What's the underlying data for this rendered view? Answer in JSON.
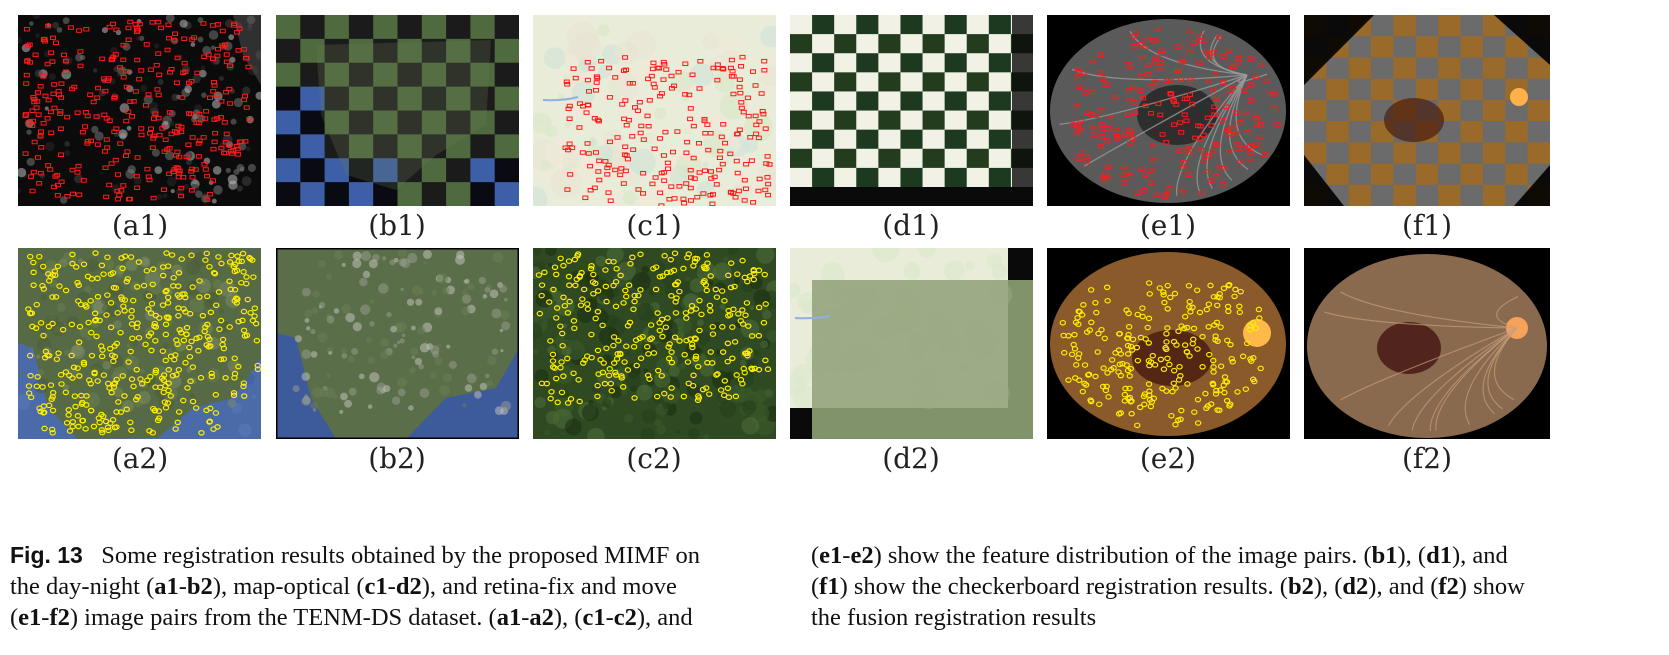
{
  "labels": {
    "a1": "(a1)",
    "b1": "(b1)",
    "c1": "(c1)",
    "d1": "(d1)",
    "e1": "(e1)",
    "f1": "(f1)",
    "a2": "(a2)",
    "b2": "(b2)",
    "c2": "(c2)",
    "d2": "(d2)",
    "e2": "(e2)",
    "f2": "(f2)"
  },
  "caption": {
    "fig_label": "Fig. 13",
    "left_lines": [
      [
        "Some registration results obtained by the proposed MIMF on"
      ],
      [
        "the day-night (",
        {
          "b": "a1"
        },
        "-",
        {
          "b": "b2"
        },
        "), map-optical (",
        {
          "b": "c1"
        },
        "-",
        {
          "b": "d2"
        },
        "), and retina-fix and move"
      ],
      [
        "(",
        {
          "b": "e1"
        },
        "-",
        {
          "b": "f2"
        },
        ") image pairs from the TENM-DS dataset. (",
        {
          "b": "a1"
        },
        "-",
        {
          "b": "a2"
        },
        "), (",
        {
          "b": "c1"
        },
        "-",
        {
          "b": "c2"
        },
        "), and"
      ]
    ],
    "right_lines": [
      [
        "(",
        {
          "b": "e1"
        },
        "-",
        {
          "b": "e2"
        },
        ") show the feature distribution of the image pairs. (",
        {
          "b": "b1"
        },
        "), (",
        {
          "b": "d1"
        },
        "), and"
      ],
      [
        "(",
        {
          "b": "f1"
        },
        ") show the checkerboard registration results. (",
        {
          "b": "b2"
        },
        "), (",
        {
          "b": "d2"
        },
        "), and (",
        {
          "b": "f2"
        },
        ") show"
      ],
      [
        "the fusion registration results"
      ]
    ]
  },
  "colors": {
    "feature_red": "#ff1a1a",
    "feature_yellow": "#ffee00",
    "night_bg": "#0b0b0b",
    "map_bg": "#e8ecd8",
    "forest": "#2f4a22",
    "sea": "#3d5fa8",
    "retina": "#8a5a2a"
  }
}
